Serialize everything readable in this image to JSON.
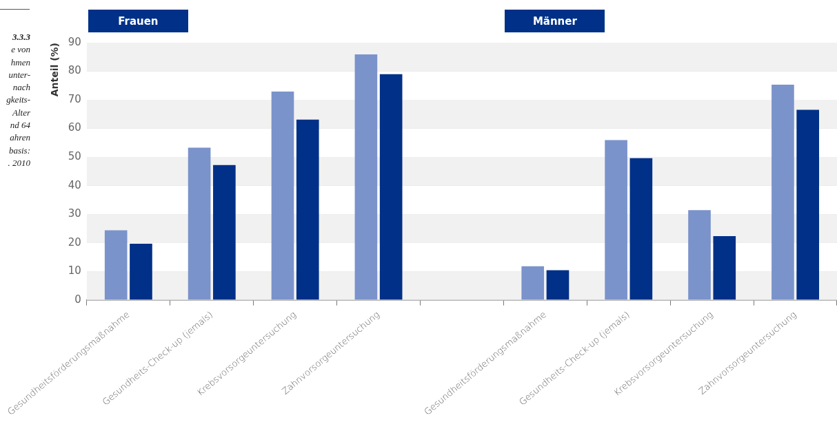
{
  "chart_data": {
    "type": "bar",
    "ylabel": "Anteil (%)",
    "categories": [
      "Gesundheitsförderungsmaßnahme",
      "Gesundheits-Check-up (jemals)",
      "Krebsvorsorgeuntersuchung",
      "Zahnvorsorgeuntersuchung",
      null,
      "Gesundheitsförderungsmaßnahme",
      "Gesundheits-Check-up (jemals)",
      "Krebsvorsorgeuntersuchung",
      "Zahnvorsorgeuntersuchung"
    ],
    "series": [
      {
        "color": "#7b93cb",
        "values": [
          24.4,
          53.3,
          72.9,
          85.9,
          null,
          11.8,
          55.9,
          31.4,
          75.3
        ]
      },
      {
        "color": "#003087",
        "values": [
          19.7,
          47.2,
          63.1,
          79.0,
          null,
          10.4,
          49.6,
          22.3,
          66.5
        ]
      }
    ],
    "ylim": [
      0,
      90
    ],
    "yticks": [
      0,
      10,
      20,
      30,
      40,
      50,
      60,
      70,
      80,
      90
    ],
    "grid": "y",
    "legend": false,
    "annotations": [
      "Frauen",
      "Männer",
      "3.3.3",
      "e von",
      "hmen",
      "unter-",
      "nach",
      "gkeits-",
      "Alter",
      "nd 64",
      "ahren",
      "basis:",
      ". 2010"
    ]
  }
}
